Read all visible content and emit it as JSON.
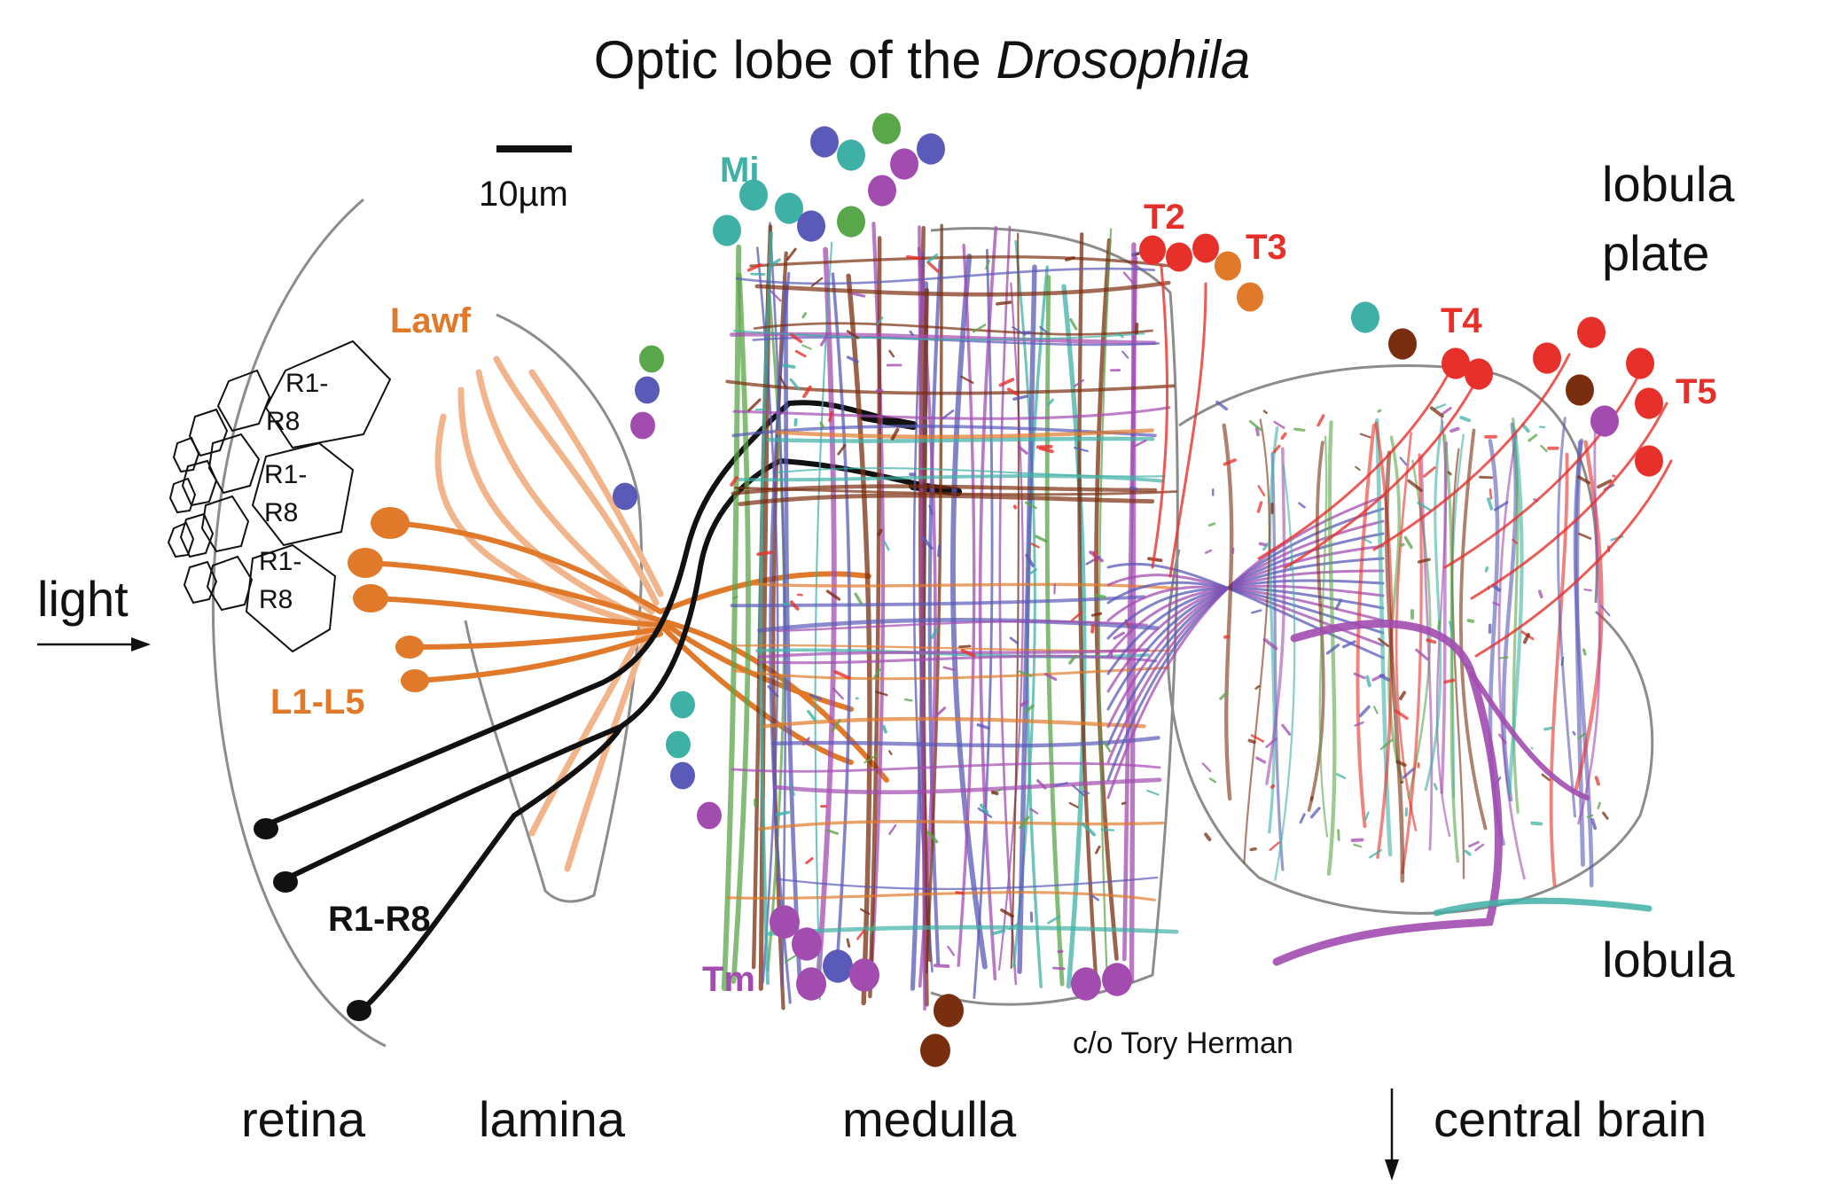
{
  "title": {
    "prefix": "Optic lobe of the ",
    "species": "Drosophila"
  },
  "scale_bar": {
    "label": "10µm"
  },
  "cell_labels": {
    "Mi": "Mi",
    "Lawf": "Lawf",
    "L1_L5": "L1-L5",
    "R1_R8": "R1-R8",
    "Tm": "Tm",
    "T2": "T2",
    "T3": "T3",
    "T4": "T4",
    "T5": "T5"
  },
  "ommatidia_labels": [
    {
      "line1": "R1-",
      "line2": "R8"
    },
    {
      "line1": "R1-",
      "line2": "R8"
    },
    {
      "line1": "R1-",
      "line2": "R8"
    }
  ],
  "region_labels": {
    "light": "light",
    "retina": "retina",
    "lamina": "lamina",
    "medulla": "medulla",
    "lobula_plate_1": "lobula",
    "lobula_plate_2": "plate",
    "lobula": "lobula",
    "central_brain": "central brain"
  },
  "credit": "c/o Tory Herman",
  "colors": {
    "photoreceptor": "#111111",
    "lamina": "#e07a2a",
    "lamina_light": "#f2b48a",
    "mi": "#3fb0a6",
    "tm": "#a24cb0",
    "t2t3": "#e8302a",
    "t4t5": "#e8302a",
    "blue": "#5a5ab8",
    "brown": "#7a2e10",
    "green": "#5aa64a",
    "outline": "#8c8c8c"
  }
}
